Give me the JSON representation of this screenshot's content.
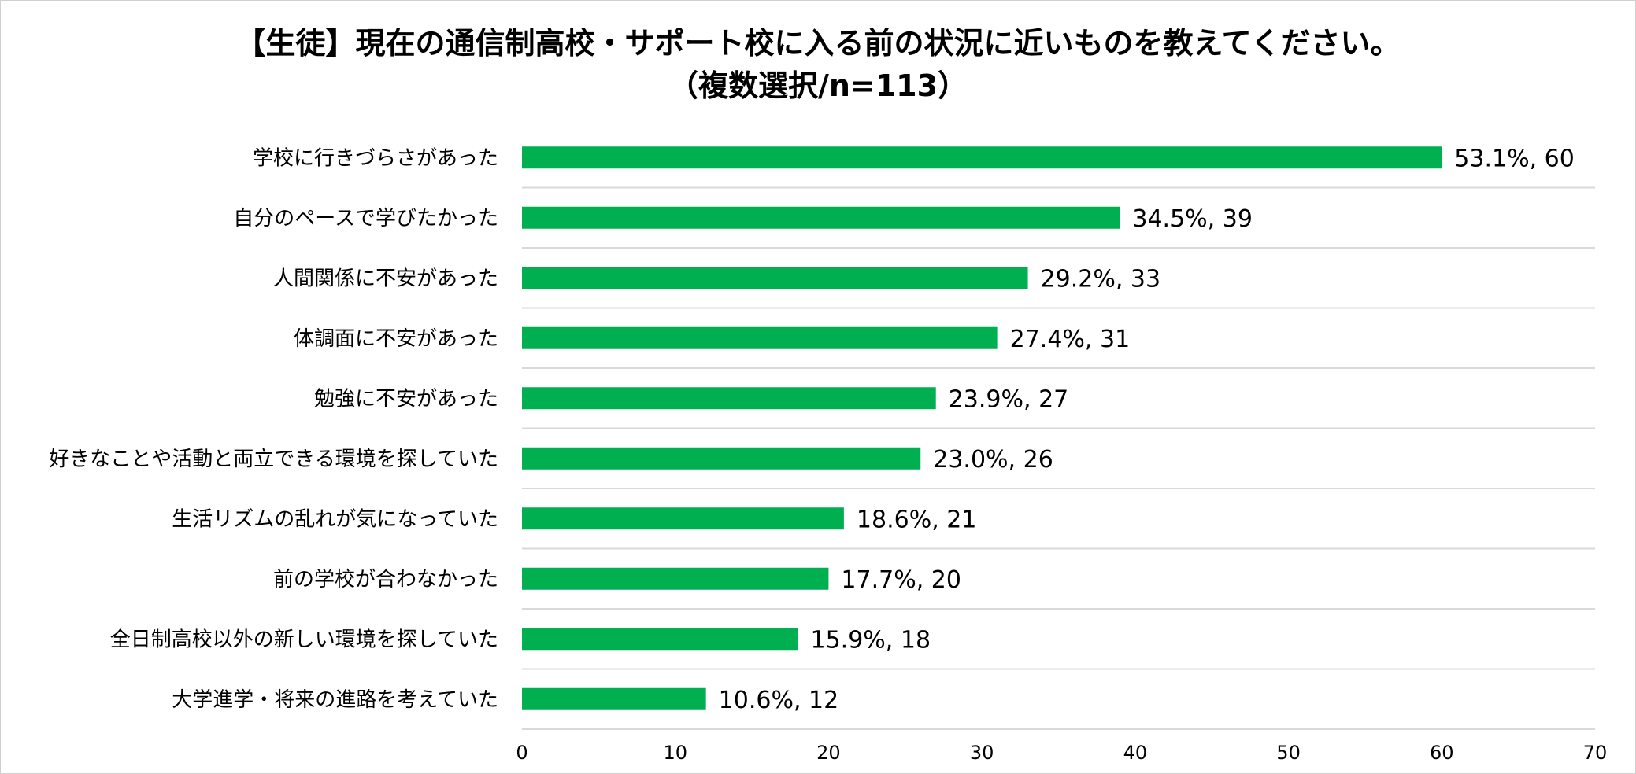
{
  "chart_data": {
    "type": "bar",
    "orientation": "horizontal",
    "title_line1": "【生徒】現在の通信制高校・サポート校に入る前の状況に近いものを教えてください。",
    "title_line2": "（複数選択/n=113）",
    "categories": [
      "学校に行きづらさがあった",
      "自分のペースで学びたかった",
      "人間関係に不安があった",
      "体調面に不安があった",
      "勉強に不安があった",
      "好きなことや活動と両立できる環境を探していた",
      "生活リズムの乱れが気になっていた",
      "前の学校が合わなかった",
      "全日制高校以外の新しい環境を探していた",
      "大学進学・将来の進路を考えていた"
    ],
    "values": [
      60,
      39,
      33,
      31,
      27,
      26,
      21,
      20,
      18,
      12
    ],
    "data_labels": [
      "53.1%, 60",
      "34.5%, 39",
      "29.2%, 33",
      "27.4%, 31",
      "23.9%, 27",
      "23.0%, 26",
      "18.6%, 21",
      "17.7%, 20",
      "15.9%, 18",
      "10.6%, 12"
    ],
    "xlim": [
      0,
      70
    ],
    "xticks": [
      "0",
      "10",
      "20",
      "30",
      "40",
      "50",
      "60",
      "70"
    ],
    "bar_color": "#00b050",
    "gridlines": "horizontal separators between categories",
    "legend": "none"
  }
}
